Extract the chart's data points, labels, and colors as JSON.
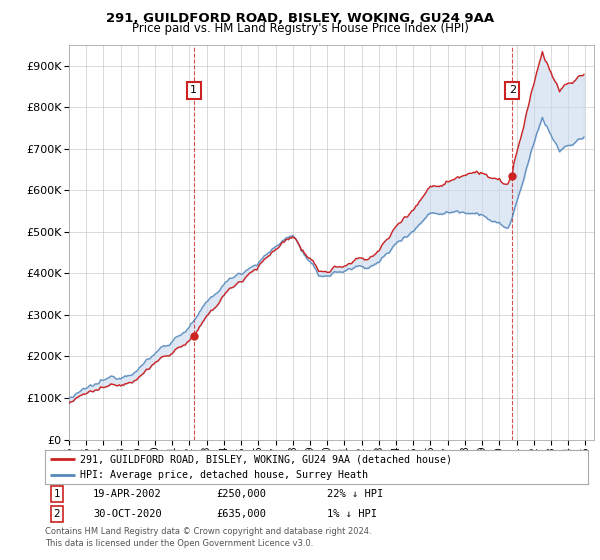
{
  "title1": "291, GUILDFORD ROAD, BISLEY, WOKING, GU24 9AA",
  "title2": "Price paid vs. HM Land Registry's House Price Index (HPI)",
  "legend_line1": "291, GUILDFORD ROAD, BISLEY, WOKING, GU24 9AA (detached house)",
  "legend_line2": "HPI: Average price, detached house, Surrey Heath",
  "annotation1_label": "1",
  "annotation1_date": "19-APR-2002",
  "annotation1_price": "£250,000",
  "annotation1_hpi": "22% ↓ HPI",
  "annotation2_label": "2",
  "annotation2_date": "30-OCT-2020",
  "annotation2_price": "£635,000",
  "annotation2_hpi": "1% ↓ HPI",
  "footnote1": "Contains HM Land Registry data © Crown copyright and database right 2024.",
  "footnote2": "This data is licensed under the Open Government Licence v3.0.",
  "red_color": "#cc2222",
  "blue_color": "#5588bb",
  "fill_color": "#c8d8ee",
  "annotation_box_color": "#cc2222",
  "ylim_min": 0,
  "ylim_max": 950000,
  "start_year": 1995,
  "end_year": 2025,
  "purchase1_year": 2002,
  "purchase1_month": 4,
  "purchase1_price": 250000,
  "purchase2_year": 2020,
  "purchase2_month": 10,
  "purchase2_price": 635000,
  "background_color": "#ffffff",
  "grid_color": "#cccccc"
}
